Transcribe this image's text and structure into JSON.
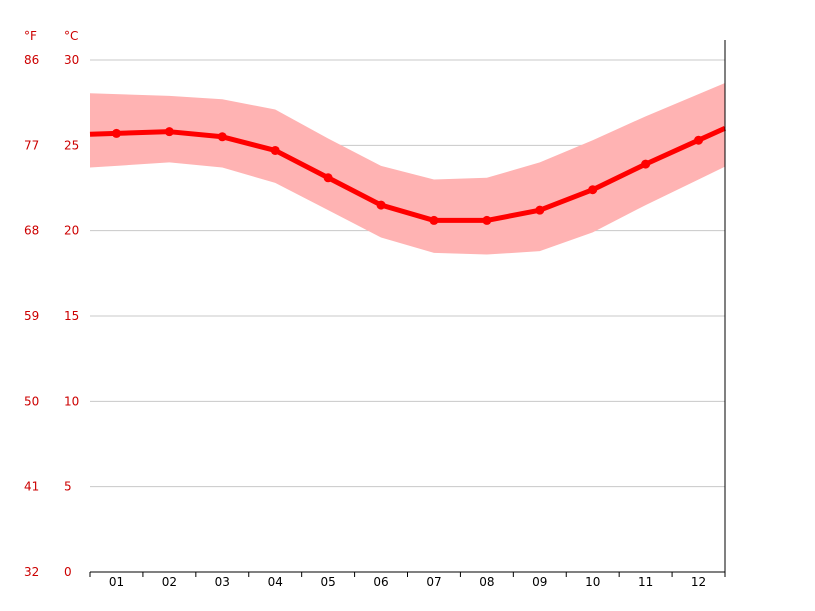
{
  "chart_data": {
    "type": "line",
    "title": "",
    "xlabel": "",
    "ylabel": "",
    "units": {
      "fahrenheit": "°F",
      "celsius": "°C"
    },
    "categories": [
      "01",
      "02",
      "03",
      "04",
      "05",
      "06",
      "07",
      "08",
      "09",
      "10",
      "11",
      "12"
    ],
    "yticks_celsius": [
      "0",
      "5",
      "10",
      "15",
      "20",
      "25",
      "30"
    ],
    "yticks_fahrenheit": [
      "32",
      "41",
      "50",
      "59",
      "68",
      "77",
      "86"
    ],
    "ylim": [
      0,
      30
    ],
    "grid": true,
    "series": [
      {
        "role": "average",
        "values": [
          25.7,
          25.8,
          25.5,
          24.7,
          23.1,
          21.5,
          20.6,
          20.6,
          21.2,
          22.4,
          23.9,
          25.3
        ]
      }
    ],
    "band": {
      "upper": [
        28.0,
        27.9,
        27.7,
        27.1,
        25.4,
        23.8,
        23.0,
        23.1,
        24.0,
        25.3,
        26.7,
        28.0
      ],
      "lower": [
        23.8,
        24.0,
        23.7,
        22.8,
        21.2,
        19.6,
        18.7,
        18.6,
        18.8,
        19.9,
        21.5,
        23.0
      ]
    },
    "colors": {
      "line": "#ff0000",
      "band": "#ffb3b3",
      "grid": "#c8c8c8",
      "tick_label": "#cc0000"
    }
  }
}
